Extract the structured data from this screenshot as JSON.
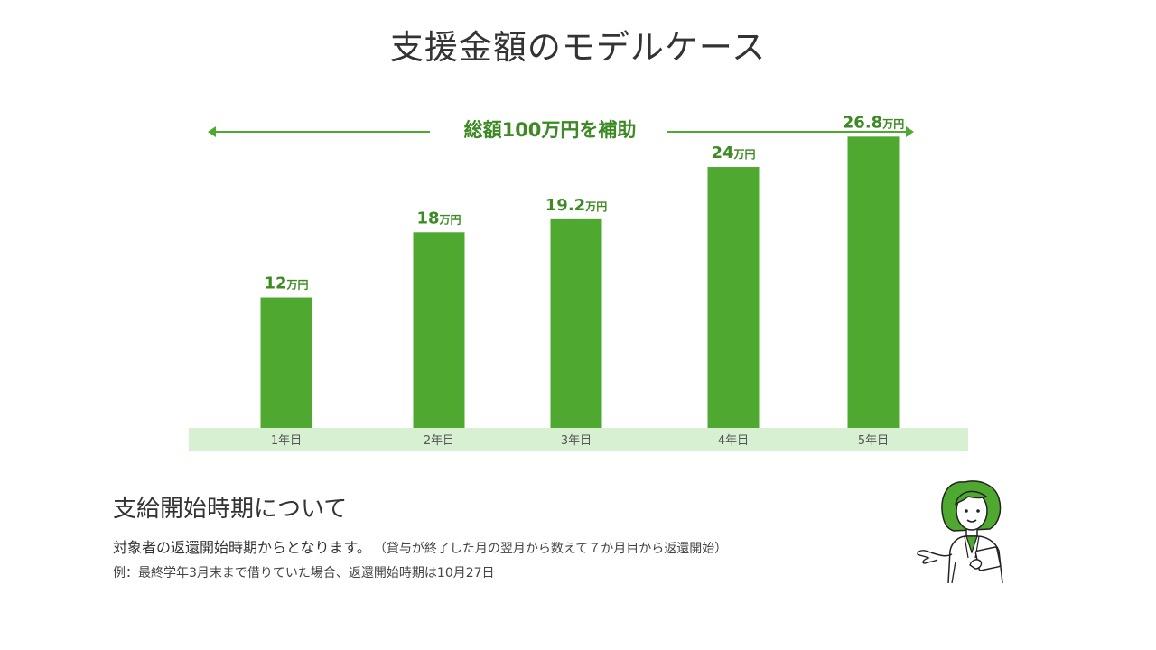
{
  "page": {
    "title": "支援金額のモデルケース",
    "total_label": "総額100万円を補助"
  },
  "chart_data": {
    "type": "bar",
    "categories": [
      "1年目",
      "2年目",
      "3年目",
      "4年目",
      "5年目"
    ],
    "values": [
      12,
      18,
      19.2,
      24,
      26.8
    ],
    "unit": "万円",
    "data_labels": [
      "12",
      "18",
      "19.2",
      "24",
      "26.8"
    ],
    "title": "",
    "xlabel": "",
    "ylabel": "",
    "ylim": [
      0,
      30
    ],
    "grid": false,
    "legend": "none",
    "bar_color": "#4fa82f",
    "label_color": "#3d8a24",
    "axis_band_color": "#d8f0d2"
  },
  "info": {
    "heading": "支給開始時期について",
    "description": "対象者の返還開始時期からとなります。",
    "description_note": "（貸与が終了した月の翌月から数えて７か月目から返還開始）",
    "example": "例：最終学年3月末まで借りていた場合、返還開始時期は10月27日"
  },
  "illustration": {
    "icon": "presenter-woman-icon",
    "accent_color": "#4fa82f"
  }
}
